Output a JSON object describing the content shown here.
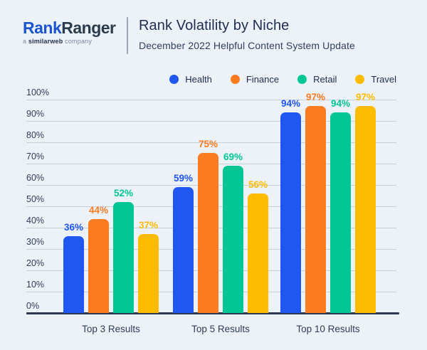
{
  "header": {
    "logo": {
      "name_part1": "Rank",
      "name_part2": "Ranger",
      "tagline_prefix": "a ",
      "tagline_brand": "similarweb",
      "tagline_suffix": " company"
    },
    "title": "Rank Volatility by Niche",
    "subtitle": "December 2022 Helpful Content System Update"
  },
  "colors": {
    "background": "#edf1f8",
    "logo_blue": "#1b54cf",
    "logo_dark": "#2b3b4e",
    "title_text": "#1e2d4f",
    "axis_text": "#2f3d58",
    "gridline": "#c8cfdc",
    "baseline": "#2b3950"
  },
  "chart_data": {
    "type": "bar",
    "title": "Rank Volatility by Niche",
    "subtitle": "December 2022 Helpful Content System Update",
    "categories": [
      "Top 3 Results",
      "Top 5 Results",
      "Top 10 Results"
    ],
    "series": [
      {
        "name": "Health",
        "color": "#1f57f0",
        "values": [
          36,
          59,
          94
        ]
      },
      {
        "name": "Finance",
        "color": "#fb7b1f",
        "values": [
          44,
          75,
          97
        ]
      },
      {
        "name": "Retail",
        "color": "#02c795",
        "values": [
          52,
          69,
          94
        ]
      },
      {
        "name": "Travel",
        "color": "#fdbc02",
        "values": [
          37,
          56,
          97
        ]
      }
    ],
    "value_suffix": "%",
    "ylim": [
      0,
      100
    ],
    "ytick_step": 10,
    "ytick_labels": [
      "0%",
      "10%",
      "20%",
      "30%",
      "40%",
      "50%",
      "60%",
      "70%",
      "80%",
      "90%",
      "100%"
    ],
    "grid": true,
    "legend_position": "top-right",
    "data_labels": true
  }
}
